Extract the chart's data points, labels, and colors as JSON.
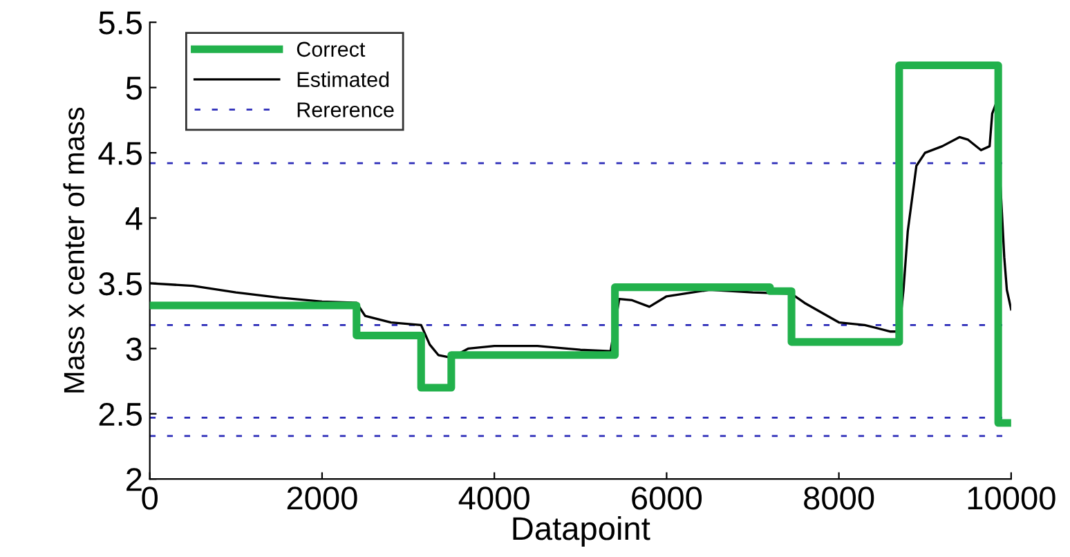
{
  "chart_data": {
    "type": "line",
    "xlabel": "Datapoint",
    "ylabel": "Mass x center of mass",
    "xlim": [
      0,
      10000
    ],
    "xticks": [
      0,
      2000,
      4000,
      6000,
      8000,
      10000
    ],
    "ylim": [
      2,
      5.5
    ],
    "yticks": [
      2,
      2.5,
      3,
      3.5,
      4,
      4.5,
      5,
      5.5
    ],
    "grid": false,
    "legend": "top left",
    "series": [
      {
        "name": "Correct",
        "color": "#22b14c",
        "line_style": "solid",
        "x": [
          0,
          2400,
          2400,
          3150,
          3150,
          3500,
          3500,
          5400,
          5400,
          7200,
          7200,
          7450,
          7450,
          8700,
          8700,
          9850,
          9850,
          10000
        ],
        "values": [
          3.33,
          3.33,
          3.1,
          3.1,
          2.7,
          2.7,
          2.95,
          2.95,
          3.47,
          3.47,
          3.44,
          3.44,
          3.05,
          3.05,
          5.17,
          5.17,
          2.43,
          2.43
        ]
      },
      {
        "name": "Estimated",
        "color": "#000000",
        "line_style": "solid",
        "x": [
          0,
          500,
          1000,
          1500,
          2000,
          2400,
          2500,
          2800,
          3150,
          3250,
          3350,
          3500,
          3700,
          4000,
          4500,
          5000,
          5350,
          5450,
          5600,
          5800,
          6000,
          6500,
          7000,
          7450,
          7600,
          8000,
          8300,
          8600,
          8700,
          8750,
          8800,
          8900,
          9000,
          9200,
          9400,
          9500,
          9650,
          9750,
          9780,
          9820,
          9880,
          9920,
          9950,
          10000
        ],
        "values": [
          3.5,
          3.48,
          3.43,
          3.39,
          3.36,
          3.35,
          3.25,
          3.2,
          3.18,
          3.03,
          2.95,
          2.93,
          3.0,
          3.02,
          3.02,
          2.99,
          2.98,
          3.38,
          3.37,
          3.32,
          3.4,
          3.45,
          3.43,
          3.42,
          3.35,
          3.2,
          3.18,
          3.13,
          3.13,
          3.45,
          3.9,
          4.4,
          4.5,
          4.55,
          4.62,
          4.6,
          4.52,
          4.55,
          4.8,
          4.87,
          4.2,
          3.7,
          3.45,
          3.3
        ]
      }
    ],
    "ref_lines": [
      {
        "axis": "y",
        "value": 4.42,
        "label": "Rererence",
        "color": "#2b2bb8",
        "line_style": "dashed"
      },
      {
        "axis": "y",
        "value": 3.18,
        "color": "#2b2bb8",
        "line_style": "dashed"
      },
      {
        "axis": "y",
        "value": 2.47,
        "color": "#2b2bb8",
        "line_style": "dashed"
      },
      {
        "axis": "y",
        "value": 2.33,
        "color": "#2b2bb8",
        "line_style": "dashed"
      }
    ]
  }
}
